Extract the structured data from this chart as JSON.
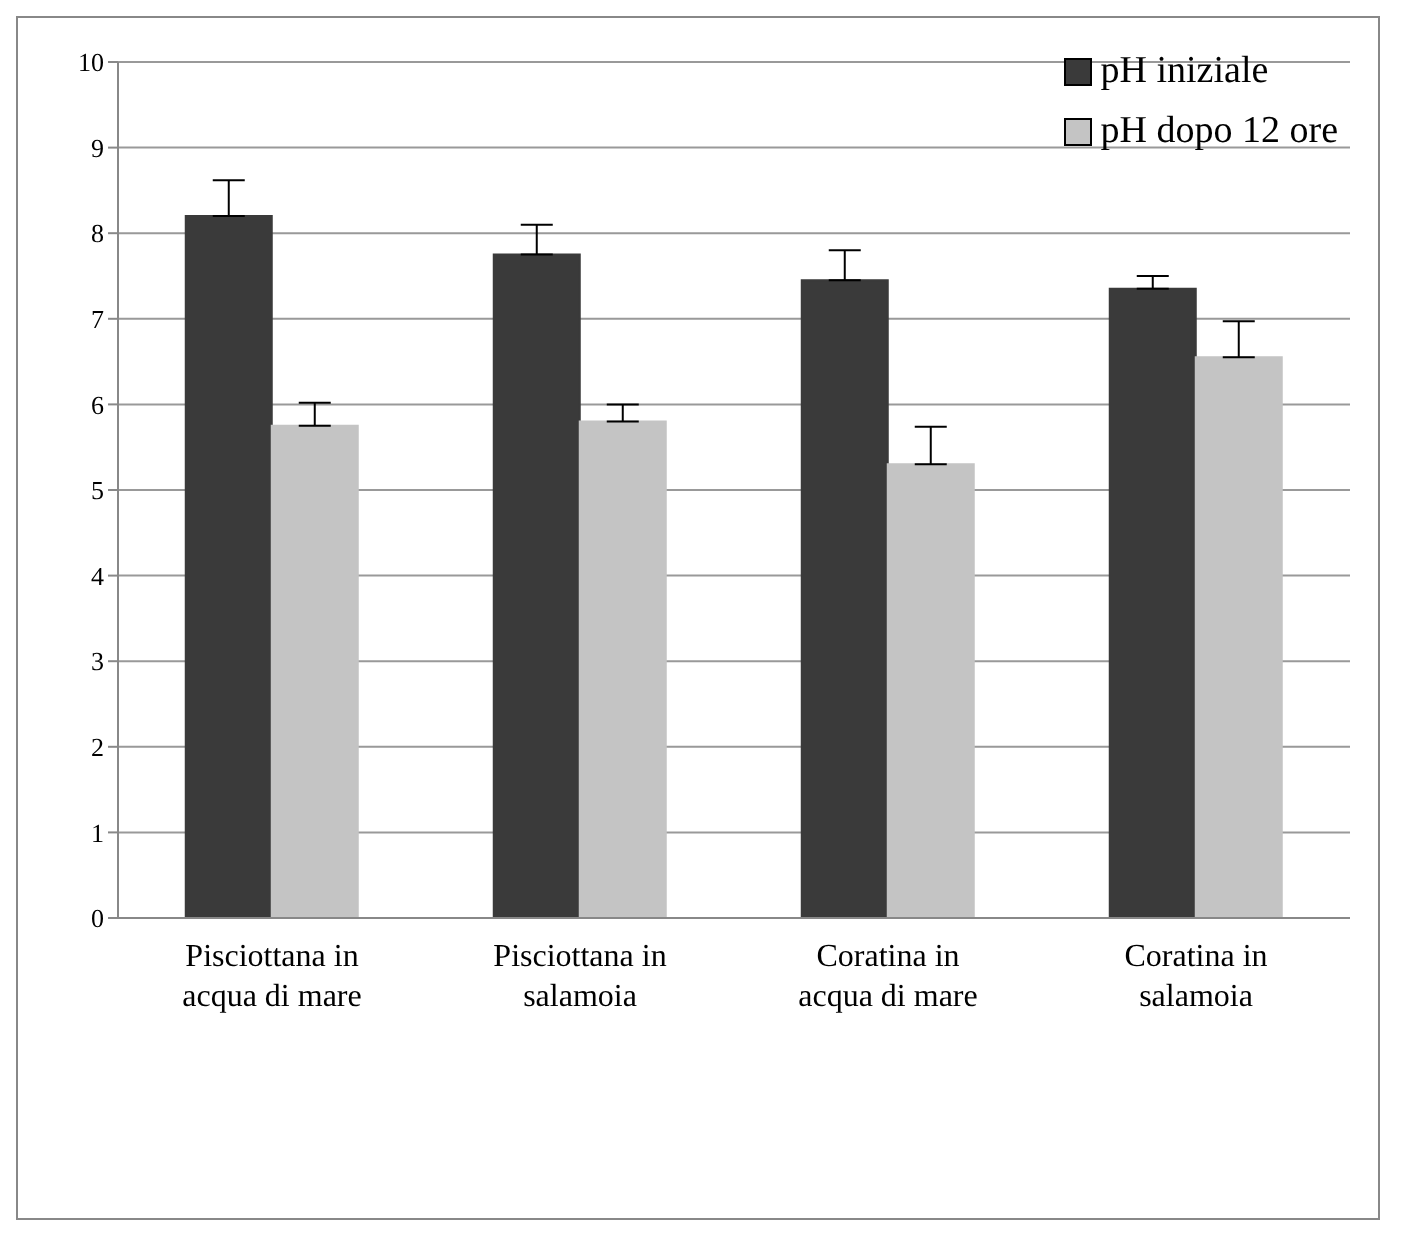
{
  "chart_data": {
    "type": "bar",
    "categories": [
      "Pisciottana in acqua di mare",
      "Pisciottana in salamoia",
      "Coratina in acqua di mare",
      "Coratina in salamoia"
    ],
    "series": [
      {
        "name": "pH iniziale",
        "color": "#3a3a3a",
        "values": [
          8.2,
          7.75,
          7.45,
          7.35
        ],
        "errors": [
          [
            8.2,
            8.62
          ],
          [
            7.75,
            8.1
          ],
          [
            7.45,
            7.8
          ],
          [
            7.35,
            7.5
          ]
        ]
      },
      {
        "name": "pH dopo 12 ore",
        "color": "#c4c4c4",
        "values": [
          5.75,
          5.8,
          5.3,
          6.55
        ],
        "errors": [
          [
            5.75,
            6.02
          ],
          [
            5.8,
            6.0
          ],
          [
            5.3,
            5.74
          ],
          [
            6.55,
            6.97
          ]
        ]
      }
    ],
    "ylim": [
      0,
      10
    ],
    "yticks": [
      0,
      1,
      2,
      3,
      4,
      5,
      6,
      7,
      8,
      9,
      10
    ],
    "grid": "y",
    "legend": "top right"
  }
}
